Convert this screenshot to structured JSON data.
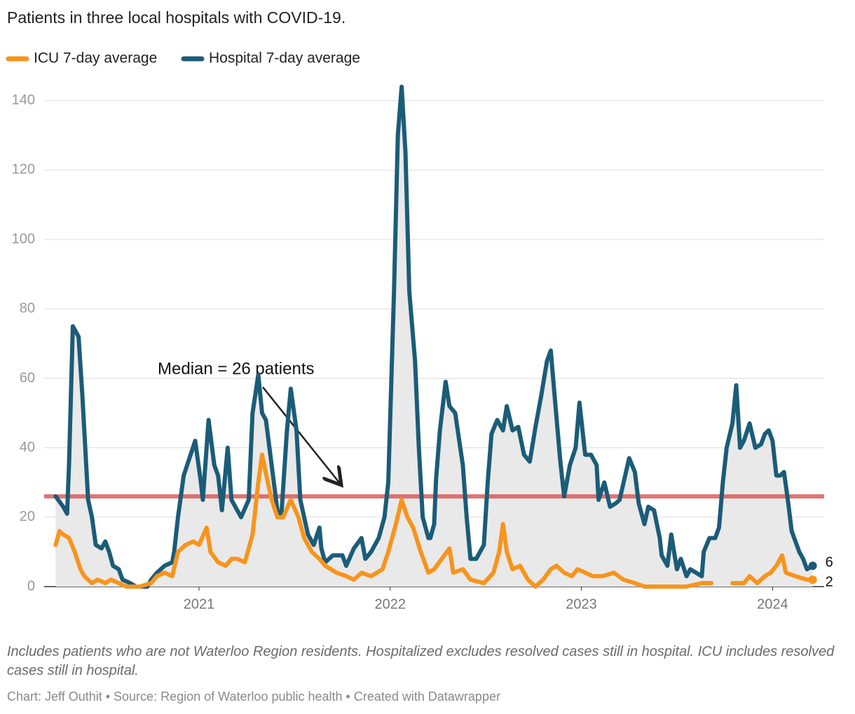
{
  "chart_data": {
    "type": "line",
    "title": "Patients in three local hospitals with COVID-19.",
    "series": [
      {
        "name": "ICU 7-day average",
        "color": "#f7941d",
        "x": [
          2020.25,
          2020.27,
          2020.29,
          2020.32,
          2020.35,
          2020.38,
          2020.4,
          2020.42,
          2020.44,
          2020.47,
          2020.51,
          2020.54,
          2020.58,
          2020.62,
          2020.69,
          2020.75,
          2020.78,
          2020.82,
          2020.86,
          2020.89,
          2020.93,
          2020.97,
          2021.0,
          2021.04,
          2021.06,
          2021.1,
          2021.14,
          2021.17,
          2021.2,
          2021.24,
          2021.28,
          2021.31,
          2021.33,
          2021.36,
          2021.38,
          2021.41,
          2021.44,
          2021.48,
          2021.52,
          2021.55,
          2021.59,
          2021.63,
          2021.66,
          2021.72,
          2021.77,
          2021.81,
          2021.85,
          2021.9,
          2021.96,
          2021.99,
          2022.03,
          2022.06,
          2022.09,
          2022.12,
          2022.16,
          2022.2,
          2022.23,
          2022.27,
          2022.31,
          2022.33,
          2022.38,
          2022.42,
          2022.49,
          2022.54,
          2022.57,
          2022.59,
          2022.61,
          2022.64,
          2022.68,
          2022.72,
          2022.76,
          2022.8,
          2022.84,
          2022.87,
          2022.91,
          2022.95,
          2022.98,
          2023.02,
          2023.06,
          2023.11,
          2023.17,
          2023.22,
          2023.28,
          2023.33,
          2023.48,
          2023.55,
          2023.63,
          2023.68,
          2023.74,
          2023.79,
          2023.85,
          2023.88,
          2023.92,
          2023.96,
          2023.99,
          2024.02,
          2024.05,
          2024.07,
          2024.12,
          2024.18,
          2024.21
        ],
        "values": [
          12,
          16,
          15,
          14,
          10,
          5,
          3,
          2,
          1,
          2,
          1,
          2,
          1,
          0,
          0,
          1,
          3,
          4,
          3,
          10,
          12,
          13,
          12,
          17,
          10,
          7,
          6,
          8,
          8,
          7,
          15,
          30,
          38,
          30,
          25,
          20,
          20,
          25,
          20,
          14,
          10,
          8,
          6,
          4,
          3,
          2,
          4,
          3,
          5,
          10,
          18,
          25,
          20,
          17,
          10,
          4,
          5,
          8,
          11,
          4,
          5,
          2,
          1,
          4,
          10,
          18,
          10,
          5,
          6,
          2,
          0,
          2,
          5,
          6,
          4,
          3,
          5,
          4,
          3,
          3,
          4,
          2,
          1,
          0,
          0,
          0,
          1,
          1,
          null,
          1,
          1,
          3,
          1,
          3,
          4,
          6,
          9,
          4,
          3,
          2,
          2
        ]
      },
      {
        "name": "Hospital 7-day average",
        "color": "#1b5c78",
        "x": [
          2020.25,
          2020.29,
          2020.31,
          2020.32,
          2020.34,
          2020.37,
          2020.39,
          2020.4,
          2020.42,
          2020.44,
          2020.46,
          2020.49,
          2020.51,
          2020.53,
          2020.55,
          2020.58,
          2020.6,
          2020.64,
          2020.67,
          2020.73,
          2020.75,
          2020.78,
          2020.82,
          2020.86,
          2020.87,
          2020.89,
          2020.92,
          2020.95,
          2020.98,
          2021.01,
          2021.02,
          2021.05,
          2021.08,
          2021.1,
          2021.12,
          2021.15,
          2021.17,
          2021.2,
          2021.22,
          2021.26,
          2021.28,
          2021.31,
          2021.33,
          2021.35,
          2021.38,
          2021.41,
          2021.43,
          2021.46,
          2021.48,
          2021.51,
          2021.53,
          2021.55,
          2021.57,
          2021.6,
          2021.63,
          2021.64,
          2021.66,
          2021.7,
          2021.75,
          2021.77,
          2021.81,
          2021.85,
          2021.87,
          2021.9,
          2021.94,
          2021.97,
          2021.99,
          2022.02,
          2022.04,
          2022.06,
          2022.08,
          2022.1,
          2022.13,
          2022.15,
          2022.17,
          2022.2,
          2022.21,
          2022.23,
          2022.24,
          2022.26,
          2022.29,
          2022.31,
          2022.34,
          2022.38,
          2022.4,
          2022.42,
          2022.45,
          2022.49,
          2022.51,
          2022.53,
          2022.56,
          2022.59,
          2022.61,
          2022.64,
          2022.67,
          2022.7,
          2022.73,
          2022.76,
          2022.79,
          2022.82,
          2022.84,
          2022.86,
          2022.89,
          2022.91,
          2022.94,
          2022.97,
          2022.99,
          2023.02,
          2023.05,
          2023.08,
          2023.09,
          2023.12,
          2023.15,
          2023.18,
          2023.2,
          2023.25,
          2023.28,
          2023.3,
          2023.33,
          2023.35,
          2023.38,
          2023.41,
          2023.42,
          2023.45,
          2023.47,
          2023.5,
          2023.52,
          2023.55,
          2023.57,
          2023.6,
          2023.63,
          2023.64,
          2023.67,
          2023.7,
          2023.72,
          2023.74,
          2023.76,
          2023.79,
          2023.81,
          2023.83,
          2023.85,
          2023.88,
          2023.91,
          2023.94,
          2023.96,
          2023.98,
          2024.0,
          2024.02,
          2024.04,
          2024.06,
          2024.08,
          2024.1,
          2024.12,
          2024.14,
          2024.16,
          2024.18,
          2024.21
        ],
        "values": [
          26,
          23,
          21,
          35,
          75,
          72,
          55,
          45,
          25,
          20,
          12,
          11,
          13,
          10,
          6,
          5,
          2,
          1,
          0,
          0,
          2,
          4,
          6,
          7,
          10,
          20,
          32,
          37,
          42,
          30,
          25,
          48,
          35,
          32,
          22,
          40,
          25,
          22,
          20,
          25,
          50,
          61,
          50,
          48,
          35,
          22,
          20,
          45,
          57,
          45,
          25,
          20,
          15,
          12,
          17,
          11,
          7,
          9,
          9,
          6,
          11,
          14,
          8,
          10,
          14,
          20,
          30,
          85,
          130,
          144,
          125,
          85,
          65,
          40,
          20,
          14,
          14,
          18,
          31,
          45,
          59,
          52,
          50,
          35,
          20,
          8,
          8,
          12,
          30,
          44,
          48,
          45,
          52,
          45,
          46,
          38,
          36,
          46,
          55,
          65,
          68,
          55,
          36,
          26,
          35,
          40,
          53,
          38,
          38,
          35,
          25,
          30,
          23,
          24,
          25,
          37,
          33,
          24,
          18,
          23,
          22,
          14,
          9,
          6,
          15,
          5,
          8,
          3,
          5,
          4,
          3,
          10,
          14,
          14,
          17,
          30,
          40,
          47,
          58,
          40,
          42,
          47,
          40,
          41,
          44,
          45,
          42,
          32,
          32,
          33,
          25,
          16,
          13,
          10,
          8,
          5,
          6
        ]
      }
    ],
    "xlim": [
      2020.19,
      2024.27
    ],
    "xticks": [
      2021,
      2022,
      2023,
      2024
    ],
    "ylim": [
      0,
      145
    ],
    "yticks": [
      0,
      20,
      40,
      60,
      80,
      100,
      120,
      140
    ],
    "grid": true,
    "median_line": {
      "value": 26,
      "label": "Median = 26 patients",
      "color": "#d9534f"
    },
    "notes": "Includes patients who are not Waterloo Region residents. Hospitalized excludes resolved cases still in hospital. ICU includes resolved cases still in hospital.",
    "credit": "Chart: Jeff Outhit • Source: Region of Waterloo public health • Created with Datawrapper"
  }
}
